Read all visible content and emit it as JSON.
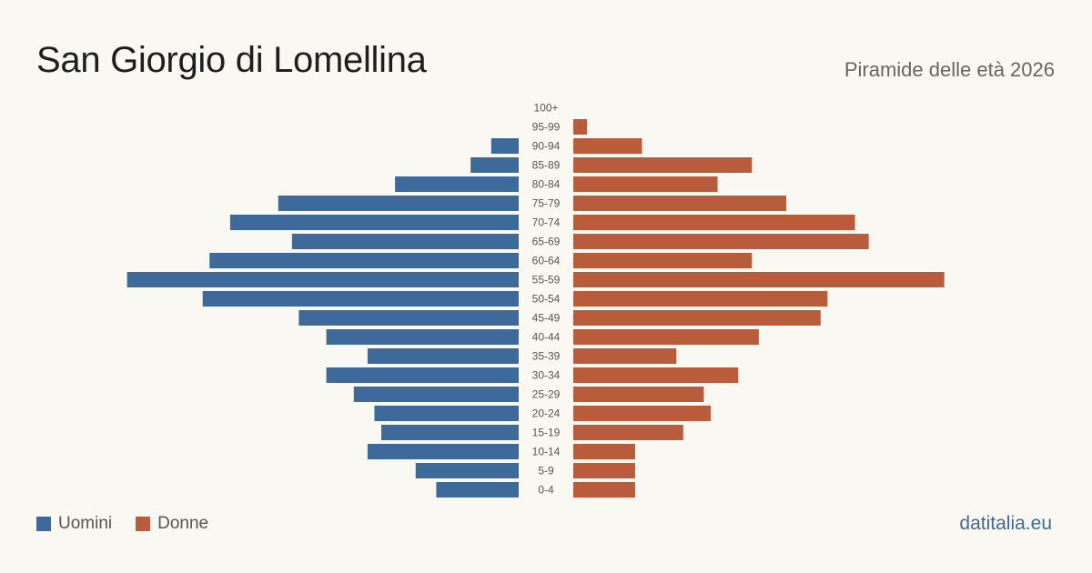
{
  "header": {
    "title": "San Giorgio di Lomellina",
    "subtitle": "Piramide delle età 2026"
  },
  "legend": {
    "men_label": "Uomini",
    "women_label": "Donne"
  },
  "brand": "datitalia.eu",
  "colors": {
    "men": "#3d6a9a",
    "women": "#b95c3c",
    "background": "#faf8f3"
  },
  "chart_data": {
    "type": "bar",
    "orientation": "horizontal-pyramid",
    "categories": [
      "100+",
      "95-99",
      "90-94",
      "85-89",
      "80-84",
      "75-79",
      "70-74",
      "65-69",
      "60-64",
      "55-59",
      "50-54",
      "45-49",
      "40-44",
      "35-39",
      "30-34",
      "25-29",
      "20-24",
      "15-19",
      "10-14",
      "5-9",
      "0-4"
    ],
    "series": [
      {
        "name": "Uomini",
        "side": "left",
        "values": [
          0,
          0,
          4,
          7,
          18,
          35,
          42,
          33,
          45,
          57,
          46,
          32,
          28,
          22,
          28,
          24,
          21,
          20,
          22,
          15,
          12
        ]
      },
      {
        "name": "Donne",
        "side": "right",
        "values": [
          0,
          2,
          10,
          26,
          21,
          31,
          41,
          43,
          26,
          54,
          37,
          36,
          27,
          15,
          24,
          19,
          20,
          16,
          9,
          9,
          9
        ]
      }
    ],
    "legend_position": "bottom-left",
    "grid": false
  }
}
